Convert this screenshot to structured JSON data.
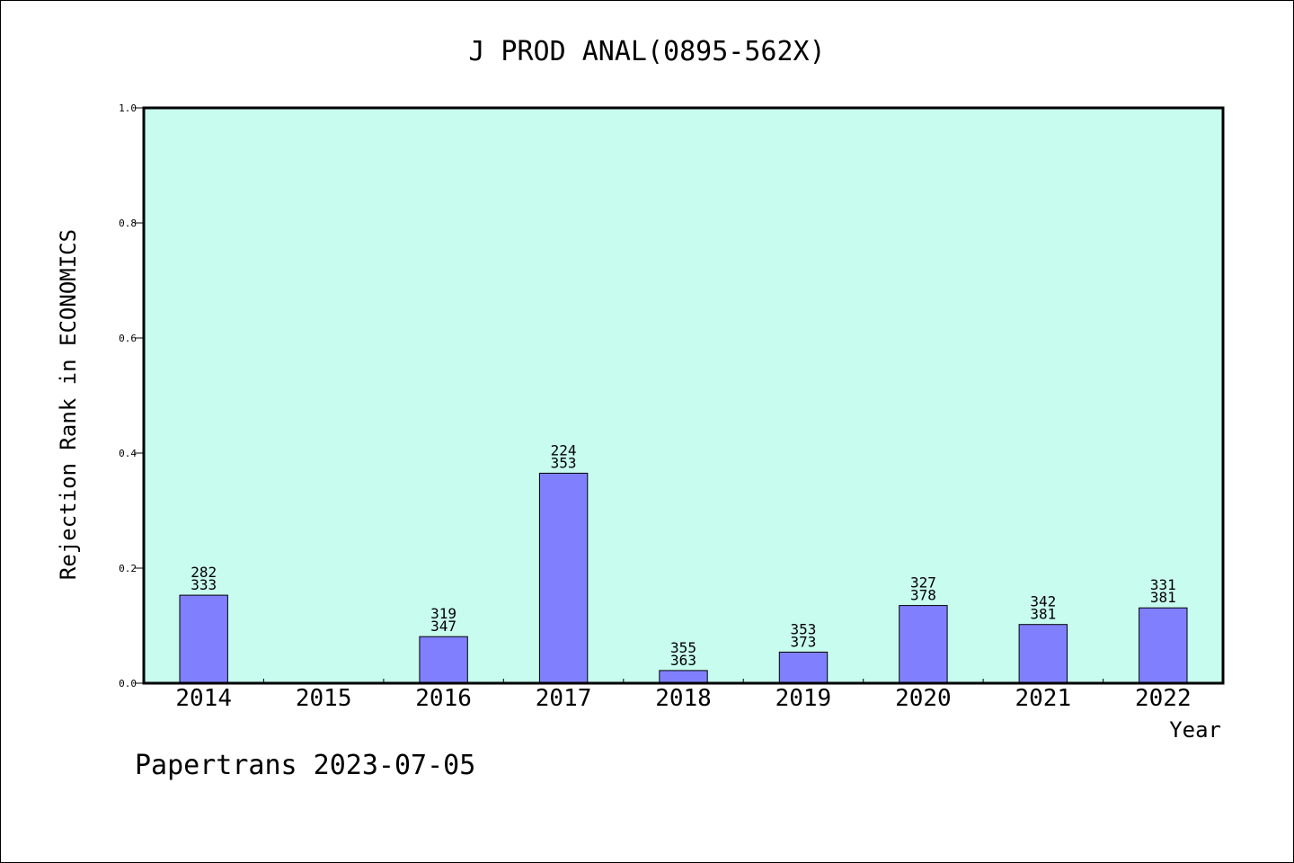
{
  "chart_data": {
    "type": "bar",
    "title": "J PROD ANAL(0895-562X)",
    "xlabel": "Year",
    "ylabel": "Rejection Rank in ECONOMICS",
    "categories": [
      "2014",
      "2015",
      "2016",
      "2017",
      "2018",
      "2019",
      "2020",
      "2021",
      "2022"
    ],
    "values": [
      0.153,
      null,
      0.081,
      0.365,
      0.022,
      0.054,
      0.135,
      0.102,
      0.131
    ],
    "bar_labels": [
      [
        "282",
        "333"
      ],
      null,
      [
        "319",
        "347"
      ],
      [
        "224",
        "353"
      ],
      [
        "355",
        "363"
      ],
      [
        "353",
        "373"
      ],
      [
        "327",
        "378"
      ],
      [
        "342",
        "381"
      ],
      [
        "331",
        "381"
      ]
    ],
    "ylim": [
      0.0,
      1.0
    ],
    "yticks": [
      "0.0",
      "0.2",
      "0.4",
      "0.6",
      "0.8",
      "1.0"
    ],
    "grid": false,
    "colors": {
      "plot_background": "#c8fcee",
      "bar_fill": "#8080ff",
      "bar_stroke": "#000000",
      "axis": "#000000"
    }
  },
  "footer": {
    "credit": "Papertrans 2023-07-05"
  }
}
